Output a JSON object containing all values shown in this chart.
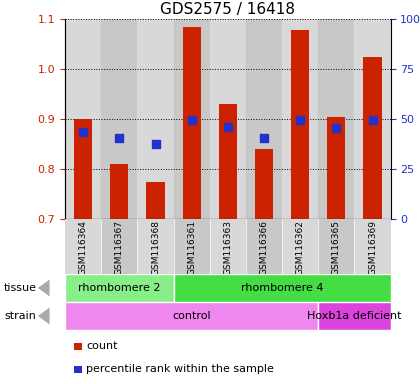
{
  "title": "GDS2575 / 16418",
  "samples": [
    "GSM116364",
    "GSM116367",
    "GSM116368",
    "GSM116361",
    "GSM116363",
    "GSM116366",
    "GSM116362",
    "GSM116365",
    "GSM116369"
  ],
  "count_values": [
    0.9,
    0.81,
    0.775,
    1.085,
    0.93,
    0.84,
    1.078,
    0.905,
    1.025
  ],
  "percentile_values": [
    0.875,
    0.862,
    0.85,
    0.898,
    0.885,
    0.862,
    0.898,
    0.882,
    0.898
  ],
  "ylim_left": [
    0.7,
    1.1
  ],
  "ylim_right": [
    0,
    100
  ],
  "yticks_left": [
    0.7,
    0.8,
    0.9,
    1.0,
    1.1
  ],
  "yticks_right": [
    0,
    25,
    50,
    75,
    100
  ],
  "ytick_right_labels": [
    "0",
    "25",
    "50",
    "75",
    "100%"
  ],
  "bar_color": "#cc2200",
  "dot_color": "#2233cc",
  "bg_color": "#ffffff",
  "col_bg_even": "#d8d8d8",
  "col_bg_odd": "#c8c8c8",
  "tissue_groups": [
    {
      "label": "rhombomere 2",
      "start": 0,
      "end": 3,
      "color": "#88ee88"
    },
    {
      "label": "rhombomere 4",
      "start": 3,
      "end": 9,
      "color": "#44dd44"
    }
  ],
  "strain_groups": [
    {
      "label": "control",
      "start": 0,
      "end": 7,
      "color": "#ee88ee"
    },
    {
      "label": "Hoxb1a deficient",
      "start": 7,
      "end": 9,
      "color": "#dd44dd"
    }
  ],
  "legend_items": [
    {
      "color": "#cc2200",
      "label": "count"
    },
    {
      "color": "#2233cc",
      "label": "percentile rank within the sample"
    }
  ],
  "left_color": "#cc2200",
  "right_color": "#2233cc",
  "bar_bottom": 0.7,
  "bar_width": 0.5,
  "dot_size": 40
}
